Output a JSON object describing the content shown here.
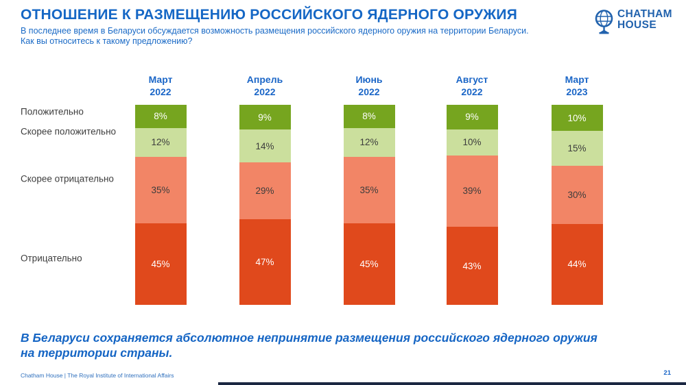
{
  "header": {
    "title": "ОТНОШЕНИЕ К РАЗМЕЩЕНИЮ РОССИЙСКОГО ЯДЕРНОГО ОРУЖИЯ",
    "subtitle_line1": "В последнее время в Беларуси обсуждается возможность размещения российского ядерного оружия на территории Беларуси.",
    "subtitle_line2": "Как вы относитесь к такому предложению?",
    "logo": {
      "icon": "globe-icon",
      "line1": "CHATHAM",
      "line2": "HOUSE",
      "color": "#2162ad"
    }
  },
  "chart_data": {
    "type": "bar",
    "stacked": true,
    "orientation": "vertical",
    "grid": false,
    "value_suffix": "%",
    "categories": [
      "Март 2022",
      "Апрель 2022",
      "Июнь 2022",
      "Август 2022",
      "Март 2023"
    ],
    "series": [
      {
        "name": "Положительно",
        "values": [
          8,
          9,
          8,
          9,
          10
        ],
        "color": "#76a51f",
        "label_color": "#ffffff"
      },
      {
        "name": "Скорее положительно",
        "values": [
          12,
          14,
          12,
          10,
          15
        ],
        "color": "#cbdf9d",
        "label_color": "#3c3c3c"
      },
      {
        "name": "Скорее отрицательно",
        "values": [
          35,
          29,
          35,
          39,
          30
        ],
        "color": "#f28566",
        "label_color": "#3c3c3c"
      },
      {
        "name": "Отрицательно",
        "values": [
          45,
          47,
          45,
          43,
          44
        ],
        "color": "#e0491c",
        "label_color": "#ffffff"
      }
    ],
    "legend_position": "left-row-labels",
    "category_label_color": "#1b66c7"
  },
  "takeaway": {
    "line1": "В Беларуси сохраняется абсолютное непринятие размещения российского ядерного оружия",
    "line2": "на территории страны."
  },
  "footer": {
    "left": "Chatham House  |  The Royal Institute of International Affairs",
    "page_number": "21"
  }
}
